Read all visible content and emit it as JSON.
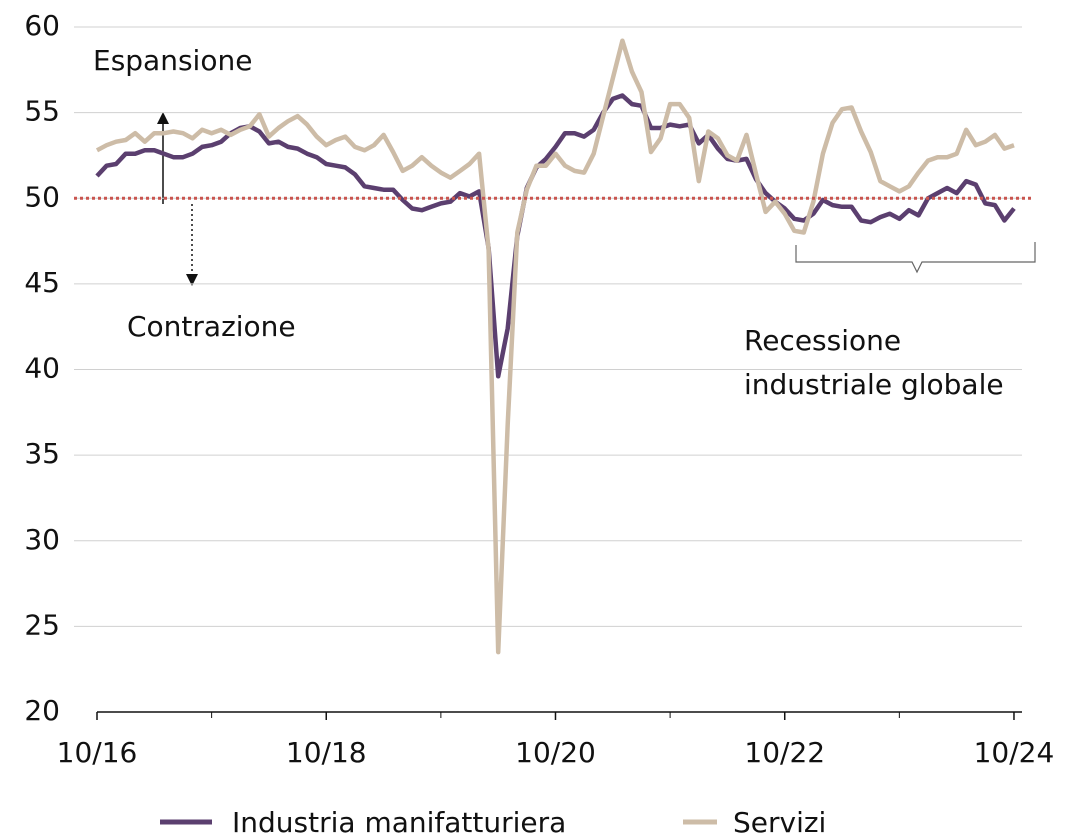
{
  "chart_data": {
    "type": "line",
    "annotations": [
      "Espansione",
      "Contrazione",
      "Recessione",
      "industriale globale"
    ],
    "xlim": [
      2016.75,
      2024.82
    ],
    "xticks": [
      {
        "value": 2016.75,
        "label": "10/16"
      },
      {
        "value": 2018.75,
        "label": "10/18"
      },
      {
        "value": 2020.75,
        "label": "10/20"
      },
      {
        "value": 2022.75,
        "label": "10/22"
      },
      {
        "value": 2024.75,
        "label": "10/24"
      }
    ],
    "xminorticks": [
      2017.75,
      2019.75,
      2021.75,
      2023.75
    ],
    "ylim": [
      20,
      60
    ],
    "yticks": [
      20,
      25,
      30,
      35,
      40,
      45,
      50,
      55,
      60
    ],
    "grid": true,
    "reference_line": {
      "value": 50,
      "color": "#c9554f"
    },
    "x_start": 2016.75,
    "x_step_months": 1,
    "series": [
      {
        "name": "Industria manifatturiera",
        "color": "#5b3f6f",
        "values": [
          51.3,
          51.9,
          52.0,
          52.6,
          52.6,
          52.8,
          52.8,
          52.6,
          52.4,
          52.4,
          52.6,
          53.0,
          53.1,
          53.3,
          53.8,
          54.1,
          54.2,
          53.9,
          53.2,
          53.3,
          53.0,
          52.9,
          52.6,
          52.4,
          52.0,
          51.9,
          51.8,
          51.4,
          50.7,
          50.6,
          50.5,
          50.5,
          49.9,
          49.4,
          49.3,
          49.5,
          49.7,
          49.8,
          50.3,
          50.1,
          50.4,
          47.1,
          39.6,
          42.4,
          47.8,
          50.6,
          51.8,
          52.3,
          53.0,
          53.8,
          53.8,
          53.6,
          54.0,
          55.0,
          55.8,
          56.0,
          55.5,
          55.4,
          54.1,
          54.1,
          54.3,
          54.2,
          54.3,
          53.2,
          53.7,
          52.9,
          52.3,
          52.2,
          52.3,
          51.1,
          50.3,
          49.8,
          49.4,
          48.8,
          48.7,
          49.1,
          49.9,
          49.6,
          49.5,
          49.5,
          48.7,
          48.6,
          48.9,
          49.1,
          48.8,
          49.3,
          49.0,
          50.0,
          50.3,
          50.6,
          50.3,
          51.0,
          50.8,
          49.7,
          49.6,
          48.7,
          49.4
        ]
      },
      {
        "name": "Servizi",
        "color": "#cdbca7",
        "values": [
          52.8,
          53.1,
          53.3,
          53.4,
          53.8,
          53.3,
          53.8,
          53.8,
          53.9,
          53.8,
          53.5,
          54.0,
          53.8,
          54.0,
          53.7,
          54.0,
          54.2,
          54.9,
          53.6,
          54.1,
          54.5,
          54.8,
          54.3,
          53.6,
          53.1,
          53.4,
          53.6,
          53.0,
          52.8,
          53.1,
          53.7,
          52.7,
          51.6,
          51.9,
          52.4,
          51.9,
          51.5,
          51.2,
          51.6,
          52.0,
          52.6,
          47.0,
          23.5,
          36.8,
          48.0,
          50.5,
          51.9,
          51.9,
          52.6,
          51.9,
          51.6,
          51.5,
          52.6,
          54.8,
          57.0,
          59.2,
          57.4,
          56.2,
          52.7,
          53.5,
          55.5,
          55.5,
          54.7,
          51.0,
          53.9,
          53.5,
          52.5,
          52.2,
          53.7,
          51.4,
          49.2,
          49.8,
          49.1,
          48.1,
          48.0,
          49.8,
          52.6,
          54.4,
          55.2,
          55.3,
          53.9,
          52.7,
          51.0,
          50.7,
          50.4,
          50.7,
          51.5,
          52.2,
          52.4,
          52.4,
          52.6,
          54.0,
          53.1,
          53.3,
          53.7,
          52.9,
          53.1
        ]
      }
    ]
  }
}
